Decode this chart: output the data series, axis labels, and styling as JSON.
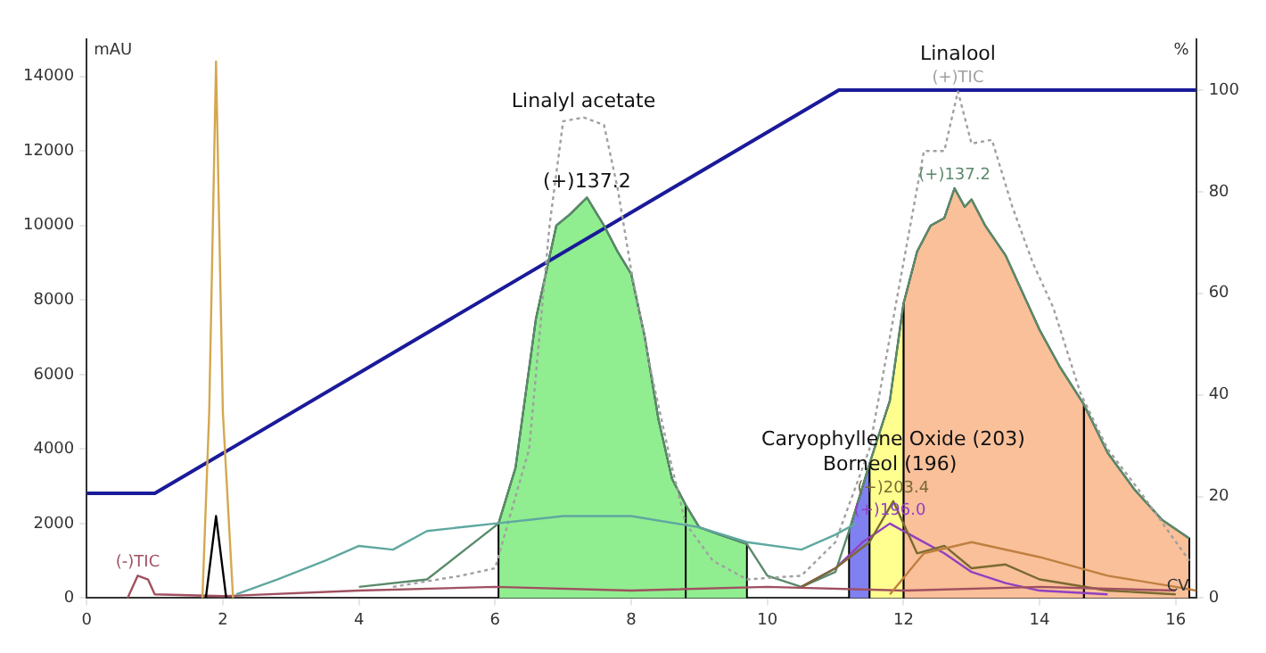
{
  "chart_data": {
    "type": "line",
    "xlabel": "CV",
    "ylabel": "mAU",
    "y2label": "%",
    "xlim": [
      0,
      16.3
    ],
    "xticks": [
      0,
      2,
      4,
      6,
      8,
      10,
      12,
      14,
      16
    ],
    "ylim": [
      0,
      15000
    ],
    "yticks": [
      0,
      2000,
      4000,
      6000,
      8000,
      10000,
      12000,
      14000
    ],
    "y2lim": [
      0,
      110
    ],
    "y2ticks": [
      0,
      20,
      40,
      60,
      80,
      100
    ],
    "grid": false,
    "legend": false,
    "marker": "none",
    "series": [
      {
        "type": "area",
        "color": "#90ee90",
        "x": [
          6.05,
          6.05,
          6.3,
          6.6,
          6.9,
          7.1,
          7.35,
          7.6,
          7.8,
          8.0,
          8.2,
          8.4,
          8.6,
          8.8,
          8.8
        ],
        "values": [
          0,
          2000,
          3500,
          7500,
          10000,
          10300,
          10750,
          10000,
          9300,
          8700,
          7000,
          4800,
          3200,
          2500,
          0
        ]
      },
      {
        "type": "area",
        "color": "#90ee90",
        "x": [
          8.8,
          8.8,
          9.0,
          9.3,
          9.7,
          9.7
        ],
        "values": [
          0,
          2500,
          1900,
          1700,
          1450,
          0
        ]
      },
      {
        "type": "area",
        "color": "#8080f0",
        "x": [
          11.2,
          11.2,
          11.5,
          11.5
        ],
        "values": [
          0,
          1800,
          3600,
          0
        ]
      },
      {
        "type": "area",
        "color": "#ffff90",
        "x": [
          11.5,
          11.5,
          11.8,
          12.0,
          12.0
        ],
        "values": [
          0,
          3600,
          5300,
          7900,
          0
        ]
      },
      {
        "type": "area",
        "color": "#f9c09a",
        "x": [
          12.0,
          12.0,
          12.2,
          12.4,
          12.6,
          12.75,
          12.9,
          13.0,
          13.2,
          13.5,
          13.8,
          14.0,
          14.3,
          14.65,
          14.65
        ],
        "values": [
          0,
          7900,
          9300,
          10000,
          10200,
          11000,
          10500,
          10700,
          10000,
          9200,
          8000,
          7200,
          6200,
          5200,
          0
        ]
      },
      {
        "type": "area",
        "color": "#f9c09a",
        "x": [
          14.65,
          14.65,
          15.0,
          15.4,
          15.8,
          16.2,
          16.2
        ],
        "values": [
          0,
          5200,
          3900,
          2900,
          2100,
          1600,
          0
        ]
      },
      {
        "color": "#d4a850",
        "x": [
          1.7,
          1.8,
          1.9,
          2.0,
          2.15
        ],
        "values": [
          0,
          5000,
          14400,
          5000,
          0
        ]
      },
      {
        "color": "#000000",
        "x": [
          1.75,
          1.9,
          2.05
        ],
        "values": [
          0,
          2200,
          0
        ]
      },
      {
        "color": "#5fa8a0",
        "x": [
          2.2,
          2.8,
          3.5,
          4.0,
          4.5,
          5.0,
          5.5,
          6.0,
          6.5,
          7.0,
          8.0,
          9.0,
          9.7,
          10.5,
          11.0,
          11.3
        ],
        "values": [
          100,
          500,
          1000,
          1400,
          1300,
          1800,
          1900,
          2000,
          2100,
          2200,
          2200,
          1900,
          1500,
          1300,
          1700,
          2000
        ]
      },
      {
        "color": "#c08040",
        "x": [
          11.8,
          12.3,
          13.0,
          14.0,
          15.0,
          16.0,
          16.3
        ],
        "values": [
          100,
          1200,
          1500,
          1100,
          600,
          300,
          200
        ]
      },
      {
        "name": "(-)TIC",
        "color": "#a05060",
        "x": [
          0.6,
          0.75,
          0.9,
          1.0,
          2.0,
          4.0,
          6.0,
          8.0,
          10.0,
          12.0,
          14.0,
          16.0
        ],
        "values": [
          0,
          600,
          500,
          100,
          50,
          200,
          300,
          200,
          300,
          200,
          300,
          200
        ]
      },
      {
        "name": "(+)203.4",
        "color": "#7a6a30",
        "x": [
          10.5,
          11.0,
          11.5,
          11.85,
          12.2,
          12.6,
          13.0,
          13.5,
          14.0,
          15.0,
          16.0
        ],
        "values": [
          300,
          800,
          1500,
          2600,
          1200,
          1400,
          800,
          900,
          500,
          200,
          100
        ]
      },
      {
        "name": "(+)196.0",
        "color": "#9040c0",
        "x": [
          10.5,
          11.0,
          11.4,
          11.8,
          12.2,
          12.6,
          13.0,
          13.5,
          14.0,
          15.0
        ],
        "values": [
          300,
          800,
          1500,
          2000,
          1600,
          1200,
          700,
          400,
          200,
          100
        ]
      },
      {
        "name": "(+)TIC",
        "color": "#a0a0a0",
        "line_style": "dotted",
        "x": [
          4.5,
          5.5,
          6.0,
          6.5,
          6.8,
          7.0,
          7.3,
          7.6,
          7.8,
          8.0,
          8.3,
          8.6,
          8.8,
          9.2,
          9.7,
          10.5,
          11.0,
          11.5,
          12.0,
          12.3,
          12.6,
          12.8,
          13.0,
          13.3,
          13.6,
          13.9,
          14.2,
          14.6,
          15.0,
          15.5,
          16.2
        ],
        "values": [
          300,
          600,
          800,
          4000,
          10000,
          12800,
          12900,
          12700,
          11000,
          8800,
          6000,
          3500,
          2000,
          1000,
          500,
          600,
          1500,
          4000,
          9000,
          12000,
          12000,
          13600,
          12200,
          12300,
          10500,
          9000,
          7800,
          5500,
          4000,
          2800,
          1000
        ]
      },
      {
        "name": "(+)137.2",
        "color": "#5a8a6a",
        "x": [
          4.0,
          5.0,
          6.05,
          6.3,
          6.6,
          6.9,
          7.1,
          7.35,
          7.6,
          7.8,
          8.0,
          8.2,
          8.4,
          8.6,
          8.8,
          9.0,
          9.3,
          9.7,
          10.0,
          10.5,
          11.0,
          11.2,
          11.5,
          11.8,
          12.0,
          12.2,
          12.4,
          12.6,
          12.75,
          12.9,
          13.0,
          13.2,
          13.5,
          13.8,
          14.0,
          14.3,
          14.65,
          15.0,
          15.4,
          15.8,
          16.2
        ],
        "values": [
          300,
          500,
          2000,
          3500,
          7500,
          10000,
          10300,
          10750,
          10000,
          9300,
          8700,
          7000,
          4800,
          3200,
          2500,
          1900,
          1700,
          1450,
          600,
          300,
          700,
          1800,
          3600,
          5300,
          7900,
          9300,
          10000,
          10200,
          11000,
          10500,
          10700,
          10000,
          9200,
          8000,
          7200,
          6200,
          5200,
          3900,
          2900,
          2100,
          1600
        ]
      },
      {
        "color": "#1a1a9a",
        "axis": "y2",
        "x": [
          0,
          1.0,
          11.05,
          16.3
        ],
        "values": [
          20.6,
          20.6,
          100,
          100
        ]
      }
    ],
    "annotations": [
      {
        "text": "Linalyl acetate",
        "x": 7.3,
        "y": 12900
      },
      {
        "text": "(+)137.2",
        "x": 7.35,
        "y": 10750
      },
      {
        "text": "Linalool",
        "x": 12.8,
        "y": 13600
      },
      {
        "text": "Borneol (196)",
        "x": 11.8,
        "y": 2000
      },
      {
        "text": "Caryophyllene Oxide (203)",
        "x": 11.85,
        "y": 2600
      }
    ]
  }
}
